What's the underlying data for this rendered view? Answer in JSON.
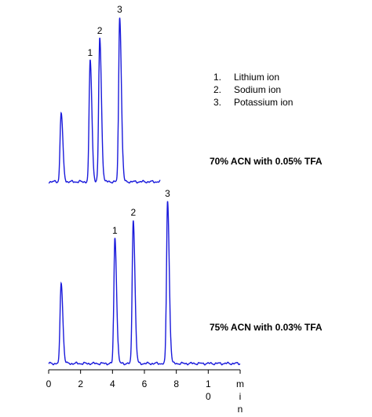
{
  "chart_data": {
    "type": "line",
    "xlabel": "min",
    "xlabel_chars": [
      "m",
      "i",
      "n"
    ],
    "xlim": [
      0,
      12
    ],
    "xticks": [
      "0",
      "2",
      "4",
      "6",
      "8",
      "1",
      "0"
    ],
    "xticks_main": [
      0,
      2,
      4,
      6,
      8
    ],
    "xtick_ten": {
      "value": 10,
      "chars": [
        "1",
        "0"
      ]
    },
    "legend": [
      {
        "num": "1.",
        "label": "Lithium ion"
      },
      {
        "num": "2.",
        "label": "Sodium ion"
      },
      {
        "num": "3.",
        "label": "Potassium ion"
      }
    ],
    "panels": [
      {
        "condition": "70% ACN with 0.05% TFA",
        "color": "#1a1adb",
        "x_end": 7,
        "void_peak": {
          "x": 0.78,
          "height": 88
        },
        "peaks": [
          {
            "label": "1",
            "x": 2.6,
            "height": 155
          },
          {
            "label": "2",
            "x": 3.2,
            "height": 183
          },
          {
            "label": "3",
            "x": 4.45,
            "height": 210
          }
        ]
      },
      {
        "condition": "75% ACN with 0.03% TFA",
        "color": "#1a1adb",
        "x_end": 12,
        "void_peak": {
          "x": 0.78,
          "height": 103
        },
        "peaks": [
          {
            "label": "1",
            "x": 4.15,
            "height": 160
          },
          {
            "label": "2",
            "x": 5.3,
            "height": 183
          },
          {
            "label": "3",
            "x": 7.45,
            "height": 207
          }
        ]
      }
    ]
  }
}
